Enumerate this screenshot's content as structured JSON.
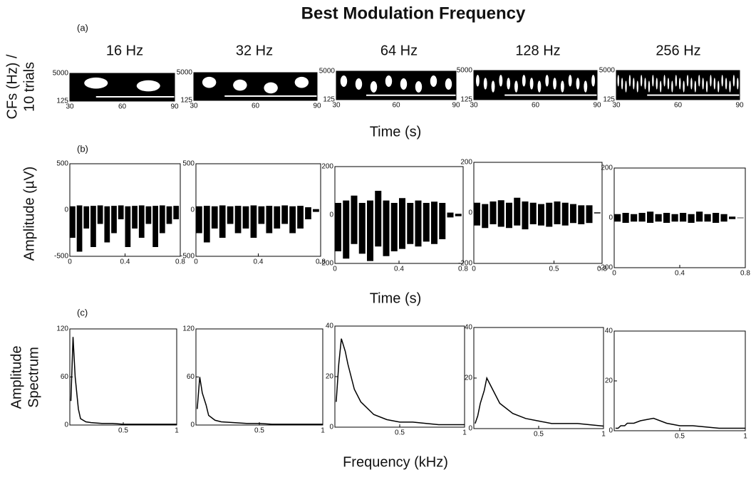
{
  "title": "Best Modulation Frequency",
  "columns": [
    "16 Hz",
    "32 Hz",
    "64 Hz",
    "128 Hz",
    "256 Hz"
  ],
  "rows": [
    {
      "type": "raster",
      "label": "(a)",
      "y_label": [
        "CFs (Hz) /",
        "10 trials"
      ],
      "x_label": "Time (s)",
      "panels": [
        {
          "xlim": [
            30,
            90
          ],
          "ylim": [
            125,
            5000
          ],
          "log_y": true,
          "xticks": [
            30,
            60,
            90
          ],
          "yticks": [
            125,
            5000
          ]
        },
        {
          "xlim": [
            30,
            90
          ],
          "ylim": [
            125,
            5000
          ],
          "log_y": true,
          "xticks": [
            30,
            60,
            90
          ],
          "yticks": [
            125,
            5000
          ]
        },
        {
          "xlim": [
            30,
            90
          ],
          "ylim": [
            125,
            5000
          ],
          "log_y": true,
          "xticks": [
            30,
            60,
            90
          ],
          "yticks": [
            125,
            5000
          ]
        },
        {
          "xlim": [
            30,
            90
          ],
          "ylim": [
            125,
            5000
          ],
          "log_y": true,
          "xticks": [
            30,
            60,
            90
          ],
          "yticks": [
            125,
            5000
          ]
        },
        {
          "xlim": [
            30,
            90
          ],
          "ylim": [
            125,
            5000
          ],
          "log_y": true,
          "xticks": [
            30,
            60,
            90
          ],
          "yticks": [
            125,
            5000
          ]
        }
      ]
    },
    {
      "type": "waveform",
      "label": "(b)",
      "y_label": [
        "Amplitude (µV)"
      ],
      "x_label": "Time (s)",
      "panels": [
        {
          "xlim": [
            0,
            0.8
          ],
          "ylim": [
            -500,
            500
          ],
          "xticks": [
            0,
            0.4,
            0.8
          ],
          "yticks": [
            -500,
            0,
            500
          ],
          "x": [
            0.02,
            0.07,
            0.12,
            0.17,
            0.22,
            0.27,
            0.32,
            0.37,
            0.42,
            0.47,
            0.52,
            0.57,
            0.62,
            0.67,
            0.72,
            0.77
          ],
          "upper": [
            40,
            50,
            40,
            45,
            50,
            40,
            45,
            50,
            40,
            45,
            50,
            40,
            45,
            50,
            40,
            45
          ],
          "lower": [
            -300,
            -450,
            -200,
            -400,
            -150,
            -350,
            -250,
            -100,
            -400,
            -200,
            -300,
            -150,
            -400,
            -250,
            -150,
            -100
          ]
        },
        {
          "xlim": [
            0,
            0.8
          ],
          "ylim": [
            -500,
            500
          ],
          "xticks": [
            0,
            0.4,
            0.8
          ],
          "yticks": [
            -500,
            0,
            500
          ],
          "x": [
            0.02,
            0.07,
            0.12,
            0.17,
            0.22,
            0.27,
            0.32,
            0.37,
            0.42,
            0.47,
            0.52,
            0.57,
            0.62,
            0.67,
            0.72,
            0.77
          ],
          "upper": [
            40,
            45,
            40,
            50,
            40,
            45,
            40,
            50,
            40,
            45,
            40,
            50,
            40,
            45,
            30,
            10
          ],
          "lower": [
            -250,
            -350,
            -200,
            -300,
            -150,
            -250,
            -200,
            -300,
            -150,
            -250,
            -200,
            -150,
            -250,
            -200,
            -100,
            -20
          ]
        },
        {
          "xlim": [
            0,
            0.8
          ],
          "ylim": [
            -200,
            200
          ],
          "xticks": [
            0,
            0.4,
            0.8
          ],
          "yticks": [
            -200,
            0,
            200
          ],
          "x": [
            0.02,
            0.07,
            0.12,
            0.17,
            0.22,
            0.27,
            0.32,
            0.37,
            0.42,
            0.47,
            0.52,
            0.57,
            0.62,
            0.67,
            0.72,
            0.77
          ],
          "upper": [
            50,
            60,
            80,
            50,
            60,
            100,
            60,
            50,
            70,
            50,
            60,
            50,
            55,
            50,
            10,
            5
          ],
          "lower": [
            -150,
            -180,
            -120,
            -160,
            -190,
            -130,
            -170,
            -150,
            -140,
            -120,
            -130,
            -110,
            -120,
            -100,
            -10,
            -5
          ]
        },
        {
          "xlim": [
            0,
            0.8
          ],
          "ylim": [
            -200,
            200
          ],
          "xticks": [
            0,
            0.5,
            0.8
          ],
          "yticks": [
            -200,
            0,
            200
          ],
          "x": [
            0.02,
            0.07,
            0.12,
            0.17,
            0.22,
            0.27,
            0.32,
            0.37,
            0.42,
            0.47,
            0.52,
            0.57,
            0.62,
            0.67,
            0.72,
            0.77
          ],
          "upper": [
            40,
            35,
            45,
            50,
            40,
            60,
            45,
            40,
            35,
            40,
            45,
            40,
            35,
            30,
            30,
            2
          ],
          "lower": [
            -50,
            -60,
            -45,
            -55,
            -60,
            -50,
            -65,
            -45,
            -50,
            -55,
            -45,
            -50,
            -40,
            -45,
            -40,
            -2
          ]
        },
        {
          "xlim": [
            0,
            0.8
          ],
          "ylim": [
            -200,
            200
          ],
          "xticks": [
            0,
            0.4,
            0.8
          ],
          "yticks": [
            -200,
            0,
            200
          ],
          "x": [
            0.02,
            0.07,
            0.12,
            0.17,
            0.22,
            0.27,
            0.32,
            0.37,
            0.42,
            0.47,
            0.52,
            0.57,
            0.62,
            0.67,
            0.72,
            0.77
          ],
          "upper": [
            15,
            20,
            15,
            20,
            25,
            15,
            20,
            15,
            20,
            15,
            25,
            15,
            20,
            15,
            5,
            1
          ],
          "lower": [
            -15,
            -20,
            -15,
            -15,
            -20,
            -15,
            -20,
            -15,
            -15,
            -20,
            -15,
            -15,
            -20,
            -15,
            -5,
            -1
          ]
        }
      ]
    },
    {
      "type": "spectrum",
      "label": "(c)",
      "y_label": [
        "Amplitude",
        "Spectrum"
      ],
      "x_label": "Frequency (kHz)",
      "panels": [
        {
          "xlim": [
            0,
            1
          ],
          "ylim": [
            0,
            120
          ],
          "xticks": [
            0.5,
            1
          ],
          "yticks": [
            0,
            60,
            120
          ],
          "x": [
            0.01,
            0.03,
            0.05,
            0.08,
            0.1,
            0.15,
            0.2,
            0.3,
            0.4,
            0.5,
            0.6,
            0.8,
            1.0
          ],
          "values": [
            30,
            110,
            60,
            20,
            8,
            4,
            3,
            2,
            2,
            1,
            1,
            1,
            1
          ]
        },
        {
          "xlim": [
            0,
            1
          ],
          "ylim": [
            0,
            120
          ],
          "xticks": [
            0.5,
            1
          ],
          "yticks": [
            0,
            60,
            120
          ],
          "x": [
            0.01,
            0.03,
            0.05,
            0.08,
            0.1,
            0.15,
            0.2,
            0.3,
            0.4,
            0.5,
            0.6,
            0.8,
            1.0
          ],
          "values": [
            20,
            60,
            40,
            25,
            12,
            6,
            4,
            3,
            2,
            2,
            1,
            1,
            1
          ]
        },
        {
          "xlim": [
            0,
            1
          ],
          "ylim": [
            0,
            40
          ],
          "xticks": [
            0.5,
            1
          ],
          "yticks": [
            0,
            20,
            40
          ],
          "x": [
            0.01,
            0.03,
            0.05,
            0.08,
            0.1,
            0.15,
            0.2,
            0.3,
            0.4,
            0.5,
            0.6,
            0.8,
            1.0
          ],
          "values": [
            10,
            25,
            35,
            30,
            25,
            15,
            10,
            5,
            3,
            2,
            2,
            1,
            1
          ]
        },
        {
          "xlim": [
            0,
            1
          ],
          "ylim": [
            0,
            40
          ],
          "xticks": [
            0.5,
            1
          ],
          "yticks": [
            0,
            20,
            40
          ],
          "x": [
            0.01,
            0.03,
            0.05,
            0.08,
            0.1,
            0.15,
            0.2,
            0.3,
            0.4,
            0.5,
            0.6,
            0.8,
            1.0
          ],
          "values": [
            2,
            5,
            10,
            15,
            20,
            15,
            10,
            6,
            4,
            3,
            2,
            2,
            1
          ]
        },
        {
          "xlim": [
            0,
            1
          ],
          "ylim": [
            0,
            40
          ],
          "xticks": [
            0.5,
            1
          ],
          "yticks": [
            0,
            20,
            40
          ],
          "x": [
            0.01,
            0.03,
            0.05,
            0.08,
            0.1,
            0.15,
            0.2,
            0.3,
            0.4,
            0.5,
            0.6,
            0.8,
            1.0
          ],
          "values": [
            1,
            1,
            2,
            2,
            3,
            3,
            4,
            5,
            3,
            2,
            2,
            1,
            1
          ]
        }
      ]
    }
  ]
}
